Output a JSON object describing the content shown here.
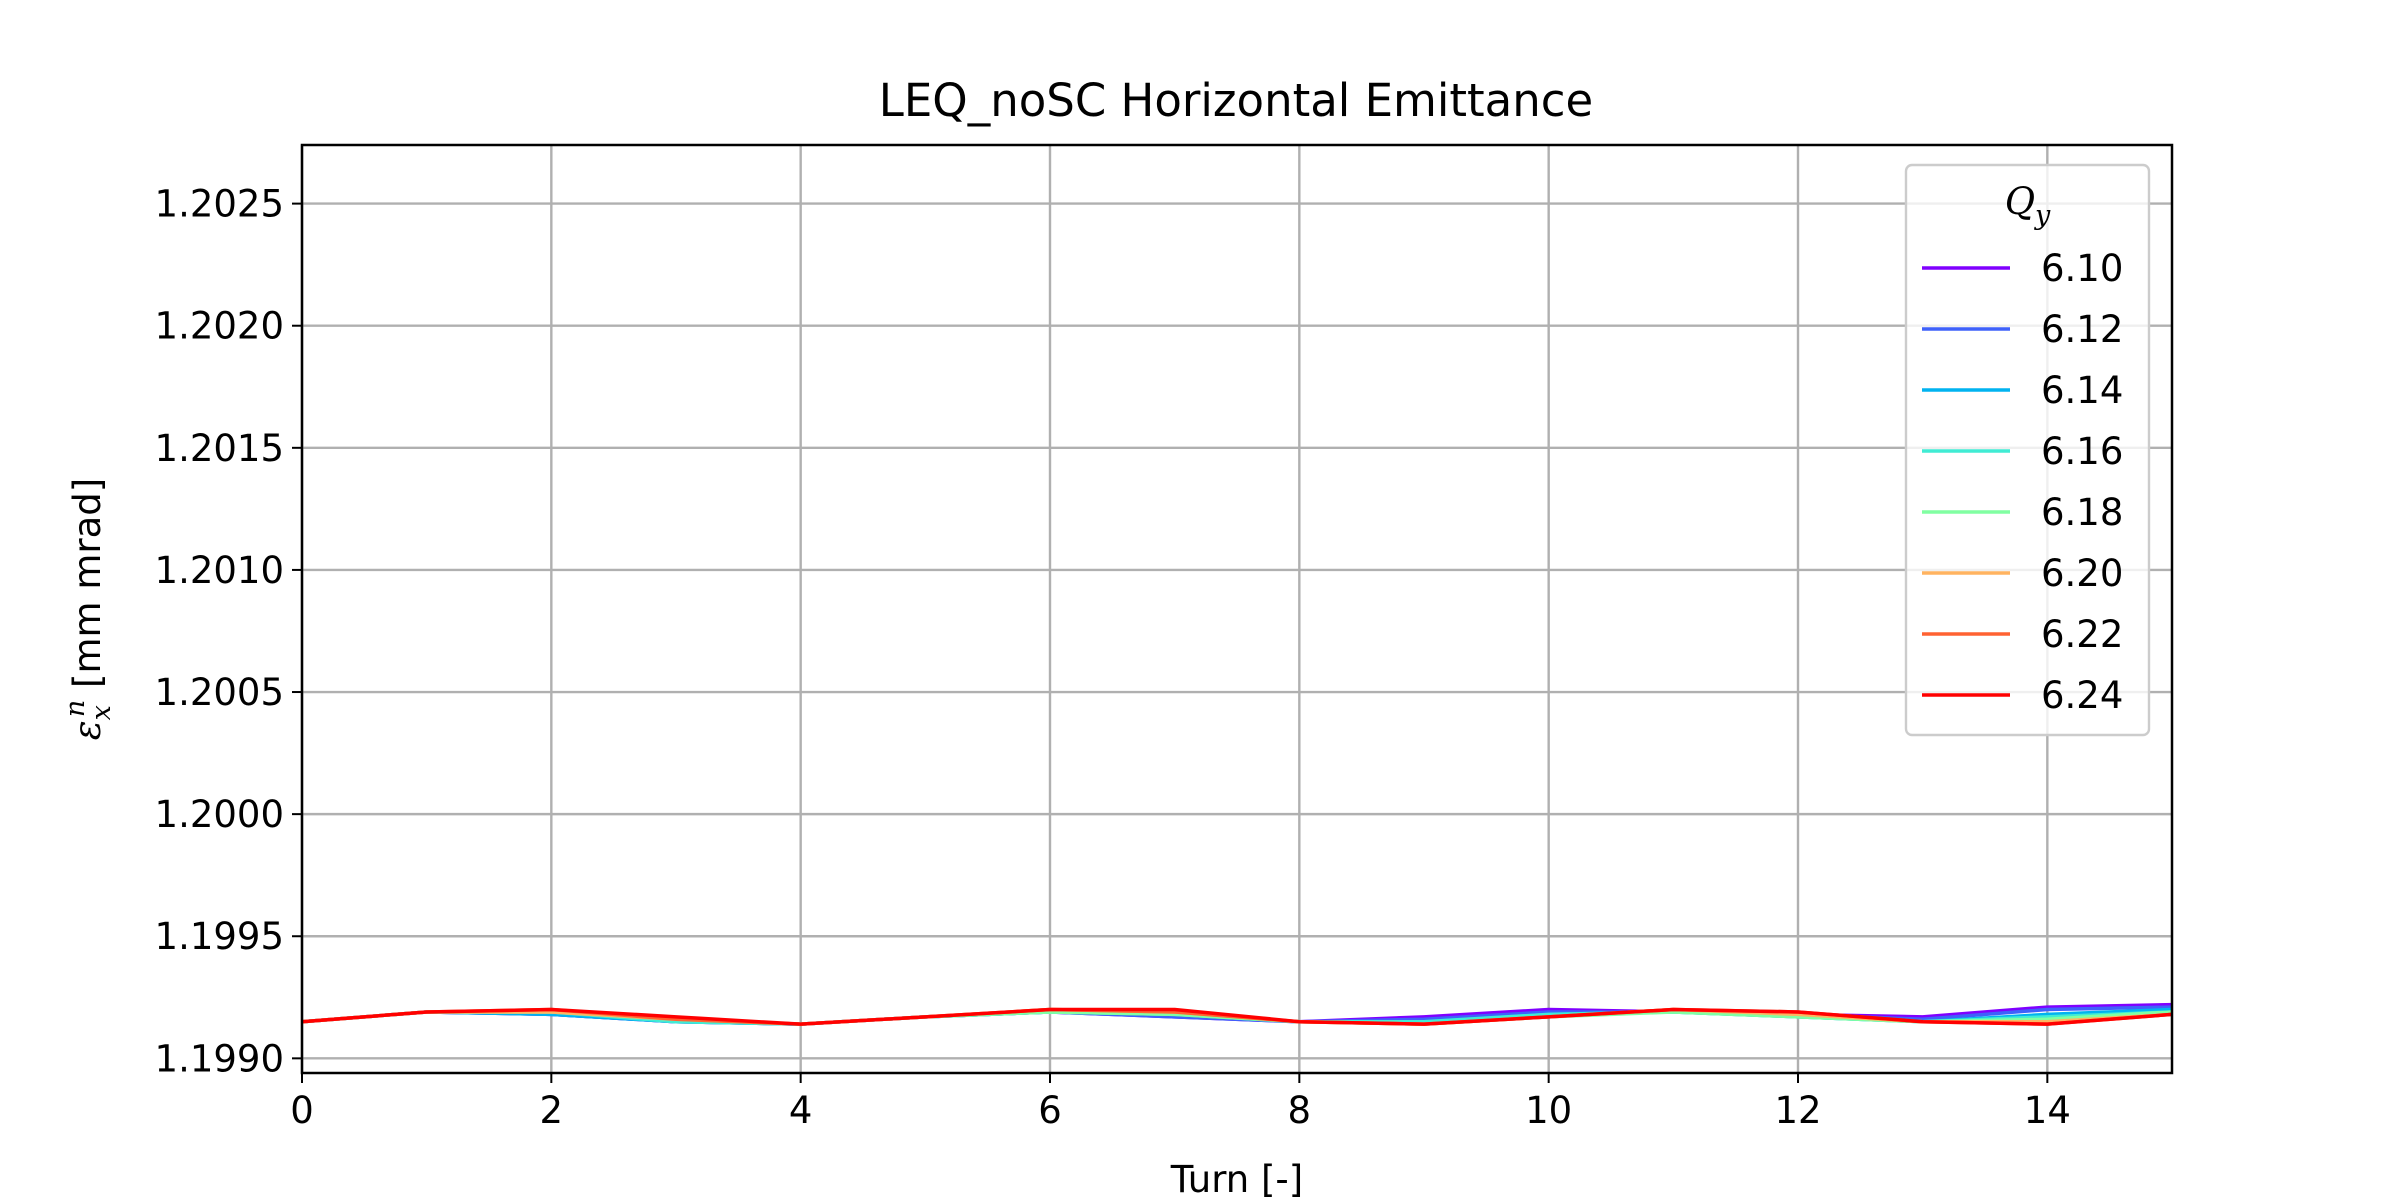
{
  "chart_data": {
    "type": "line",
    "title": "LEQ_noSC Horizontal Emittance",
    "xlabel": "Turn [-]",
    "ylabel": "ε_x^n [mm mrad]",
    "xlim": [
      0,
      15
    ],
    "ylim": [
      1.19894,
      1.20274
    ],
    "xticks": [
      "0",
      "2",
      "4",
      "6",
      "8",
      "10",
      "12",
      "14"
    ],
    "yticks": [
      "1.1990",
      "1.1995",
      "1.2000",
      "1.2005",
      "1.2010",
      "1.2015",
      "1.2020",
      "1.2025"
    ],
    "grid": true,
    "legend": {
      "title": "Q_y",
      "placement": "top-right"
    },
    "x": [
      0,
      1,
      2,
      3,
      4,
      5,
      6,
      7,
      8,
      9,
      10,
      11,
      12,
      13,
      14,
      15
    ],
    "series": [
      {
        "name": "6.10",
        "color": "#8000ff",
        "values": [
          1.19915,
          1.19919,
          1.19918,
          1.19915,
          1.19914,
          1.19917,
          1.19919,
          1.19917,
          1.19915,
          1.19917,
          1.1992,
          1.19919,
          1.19918,
          1.19917,
          1.19921,
          1.19922
        ]
      },
      {
        "name": "6.12",
        "color": "#3f61fa",
        "values": [
          1.19915,
          1.19919,
          1.19918,
          1.19915,
          1.19914,
          1.19917,
          1.19919,
          1.19917,
          1.19915,
          1.19916,
          1.19919,
          1.19919,
          1.19918,
          1.19916,
          1.1992,
          1.19921
        ]
      },
      {
        "name": "6.14",
        "color": "#01b3f0",
        "values": [
          1.19915,
          1.19919,
          1.19918,
          1.19915,
          1.19914,
          1.19917,
          1.19919,
          1.19918,
          1.19915,
          1.19915,
          1.19918,
          1.19919,
          1.19917,
          1.19915,
          1.19918,
          1.1992
        ]
      },
      {
        "name": "6.16",
        "color": "#40ecd4",
        "values": [
          1.19915,
          1.19919,
          1.19919,
          1.19915,
          1.19914,
          1.19917,
          1.19919,
          1.19918,
          1.19915,
          1.19915,
          1.19918,
          1.19919,
          1.19917,
          1.19915,
          1.19917,
          1.19919
        ]
      },
      {
        "name": "6.18",
        "color": "#81ffa2",
        "values": [
          1.19915,
          1.19919,
          1.19919,
          1.19916,
          1.19914,
          1.19917,
          1.19919,
          1.19918,
          1.19915,
          1.19914,
          1.19917,
          1.19919,
          1.19917,
          1.19915,
          1.19916,
          1.19919
        ]
      },
      {
        "name": "6.20",
        "color": "#ffb360",
        "values": [
          1.19915,
          1.19919,
          1.19919,
          1.19916,
          1.19914,
          1.19917,
          1.1992,
          1.19919,
          1.19915,
          1.19914,
          1.19917,
          1.1992,
          1.19918,
          1.19915,
          1.19915,
          1.19918
        ]
      },
      {
        "name": "6.22",
        "color": "#ff6232",
        "values": [
          1.19915,
          1.19919,
          1.1992,
          1.19916,
          1.19914,
          1.19917,
          1.1992,
          1.19919,
          1.19915,
          1.19914,
          1.19917,
          1.1992,
          1.19919,
          1.19915,
          1.19914,
          1.19918
        ]
      },
      {
        "name": "6.24",
        "color": "#ff0000",
        "values": [
          1.19915,
          1.19919,
          1.1992,
          1.19917,
          1.19914,
          1.19917,
          1.1992,
          1.1992,
          1.19915,
          1.19914,
          1.19917,
          1.1992,
          1.19919,
          1.19915,
          1.19914,
          1.19918
        ]
      }
    ]
  }
}
